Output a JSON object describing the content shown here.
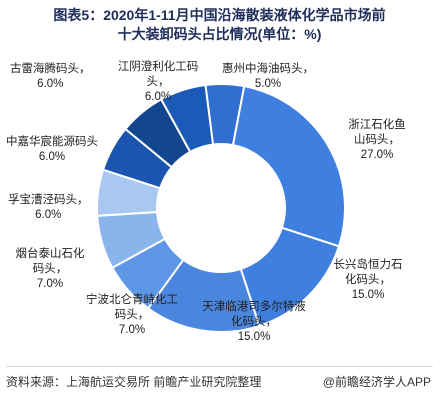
{
  "title_line1": "图表5：2020年1-11月中国沿海散装液体化学品市场前",
  "title_line2": "十大装卸码头占比情况(单位：%)",
  "chart_data": {
    "type": "pie",
    "variant": "donut",
    "title": "图表5：2020年1-11月中国沿海散装液体化学品市场前十大装卸码头占比情况(单位：%)",
    "unit": "%",
    "slices": [
      {
        "label": "惠州中海油码头，",
        "value": 5.0,
        "value_label": "5.0%",
        "color": "#2f6fcf"
      },
      {
        "label": "浙江石化鱼山码头，",
        "value": 27.0,
        "value_label": "27.0%",
        "color": "#3f7fe0"
      },
      {
        "label": "长兴岛恒力石化码头，",
        "value": 15.0,
        "value_label": "15.0%",
        "color": "#3f7fe0"
      },
      {
        "label": "天津临港司多尔特液化码头，",
        "value": 15.0,
        "value_label": "15.0%",
        "color": "#4a86dd"
      },
      {
        "label": "宁波北仑青峙化工码头，",
        "value": 7.0,
        "value_label": "7.0%",
        "color": "#5d97e6"
      },
      {
        "label": "烟台泰山石化码头，",
        "value": 7.0,
        "value_label": "7.0%",
        "color": "#8ab4ec"
      },
      {
        "label": "孚宝漕泾码头，",
        "value": 6.0,
        "value_label": "6.0%",
        "color": "#a8c8f2"
      },
      {
        "label": "中嘉华宸能源码头",
        "value": 6.0,
        "value_label": "6.0%",
        "color": "#1c55b0"
      },
      {
        "label": "古雷海腾码头，",
        "value": 6.0,
        "value_label": "6.0%",
        "color": "#12468f"
      },
      {
        "label": "江阴澄利化工码头，",
        "value": 6.0,
        "value_label": "6.0%",
        "color": "#1b5bb8"
      }
    ]
  },
  "footer": {
    "source": "资料来源：上海航运交易所 前瞻产业研究院整理",
    "brand": "@前瞻经济学人APP"
  }
}
